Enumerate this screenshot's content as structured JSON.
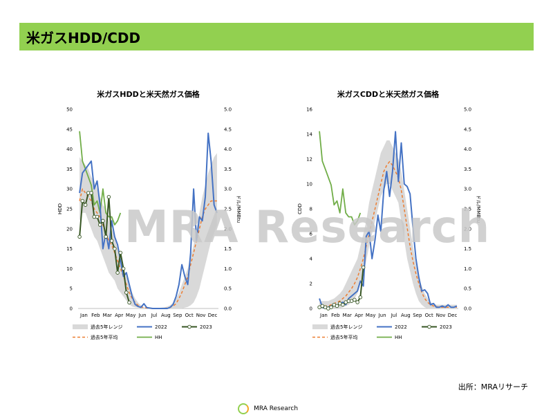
{
  "page": {
    "title": "米ガスHDD/CDD",
    "watermark": "MRA Research",
    "source": "出所：MRAリサーチ",
    "footer_text": "MRA Research",
    "colors": {
      "title_bar": "#92d050",
      "series_2022": "#4472c4",
      "series_2023": "#375623",
      "series_avg": "#ed7d31",
      "series_hh": "#70ad47",
      "range": "#d9d9d9"
    }
  },
  "chart_data": [
    {
      "type": "line",
      "title": "米ガスHDDと米天然ガス価格",
      "ylabel": "HDD",
      "y2label": "ドル/MMBtu",
      "ylim": [
        0,
        50
      ],
      "yticks": [
        "0",
        "5",
        "10",
        "15",
        "20",
        "25",
        "30",
        "35",
        "40",
        "45",
        "50"
      ],
      "y2lim": [
        0,
        5
      ],
      "y2ticks": [
        "0.0",
        "0.5",
        "1.0",
        "1.5",
        "2.0",
        "2.5",
        "3.0",
        "3.5",
        "4.0",
        "4.5",
        "5.0"
      ],
      "x_labels": [
        "Jan",
        "Feb",
        "Mar",
        "Apr",
        "May",
        "Jun",
        "Jul",
        "Aug",
        "Sep",
        "Oct",
        "Nov",
        "Dec"
      ],
      "legend": [
        "過去5年レンジ",
        "2022",
        "2023",
        "過去5年平均",
        "HH"
      ],
      "range_low": [
        22,
        24,
        24,
        22,
        20,
        18,
        17,
        15,
        13,
        11,
        9,
        8,
        7,
        5,
        4,
        3,
        2,
        1,
        0.5,
        0.3,
        0.2,
        0.1,
        0,
        0,
        0,
        0,
        0,
        0,
        0,
        0,
        0,
        0,
        0,
        0,
        0,
        0,
        0.2,
        0.4,
        0.8,
        1.5,
        3,
        5,
        8,
        11,
        14,
        17,
        19,
        21
      ],
      "range_high": [
        38,
        37,
        36,
        35,
        33,
        32,
        30,
        28,
        26,
        25,
        22,
        20,
        18,
        15,
        12,
        10,
        8,
        6,
        4,
        2.5,
        1.5,
        0.8,
        0.3,
        0.2,
        0.1,
        0.1,
        0.1,
        0.1,
        0.2,
        0.3,
        0.5,
        0.8,
        1.5,
        2.5,
        4,
        6,
        8,
        10,
        13,
        16,
        20,
        24,
        28,
        31,
        34,
        36,
        38,
        39
      ],
      "series": [
        {
          "name": "2022",
          "axis": "left",
          "values": [
            29,
            34,
            35,
            36,
            37,
            30,
            32,
            26,
            15,
            19,
            15,
            22,
            18,
            16,
            12,
            8,
            9,
            6,
            3,
            1,
            0.5,
            0.3,
            1.2,
            0.2,
            0.1,
            0,
            0,
            0,
            0,
            0,
            0,
            0.3,
            1,
            3,
            6,
            11,
            8,
            6,
            14,
            30,
            17,
            23,
            22,
            28,
            44,
            37,
            26,
            24
          ]
        },
        {
          "name": "2023",
          "axis": "left",
          "values": [
            18,
            27,
            26,
            29,
            29,
            23,
            23,
            21,
            22,
            18,
            28,
            17,
            15,
            9,
            14,
            10,
            4,
            1.5
          ]
        },
        {
          "name": "過去5年平均",
          "axis": "left",
          "values": [
            27,
            30,
            29,
            28,
            27,
            25,
            24,
            23,
            21,
            19,
            17,
            16,
            14,
            12,
            10,
            8,
            6,
            4,
            2.5,
            1.5,
            0.8,
            0.4,
            0.2,
            0.1,
            0.05,
            0,
            0,
            0,
            0,
            0.05,
            0.1,
            0.3,
            0.6,
            1.2,
            2.5,
            4,
            6,
            8,
            11,
            14,
            17,
            20,
            23,
            25,
            26,
            27,
            27,
            27
          ]
        },
        {
          "name": "HH",
          "axis": "right",
          "values": [
            4.45,
            3.7,
            3.5,
            3.3,
            3.1,
            2.6,
            2.7,
            2.4,
            3.0,
            2.4,
            2.3,
            2.3,
            2.1,
            2.2,
            2.4
          ]
        }
      ]
    },
    {
      "type": "line",
      "title": "米ガスCDDと米天然ガス価格",
      "ylabel": "CDD",
      "y2label": "ドル/MMBtu",
      "ylim": [
        0,
        16
      ],
      "yticks": [
        "0",
        "2",
        "4",
        "6",
        "8",
        "10",
        "12",
        "14",
        "16"
      ],
      "y2lim": [
        0,
        5
      ],
      "y2ticks": [
        "0.0",
        "0.5",
        "1.0",
        "1.5",
        "2.0",
        "2.5",
        "3.0",
        "3.5",
        "4.0",
        "4.5",
        "5.0"
      ],
      "x_labels": [
        "Jan",
        "Feb",
        "Mar",
        "Apr",
        "May",
        "Jun",
        "Jul",
        "Aug",
        "Sep",
        "Oct",
        "Nov",
        "Dec"
      ],
      "legend": [
        "過去5年レンジ",
        "2022",
        "2023",
        "過去5年平均",
        "HH"
      ],
      "range_low": [
        0,
        0,
        0,
        0,
        0,
        0,
        0,
        0,
        0.1,
        0.2,
        0.3,
        0.5,
        0.8,
        1.2,
        2,
        2.8,
        3.8,
        5,
        6,
        7,
        8,
        9,
        9.5,
        10,
        10,
        9.5,
        9,
        8.5,
        7,
        5.5,
        4,
        3,
        2,
        1.2,
        0.6,
        0.3,
        0.1,
        0,
        0,
        0,
        0,
        0,
        0,
        0,
        0,
        0,
        0,
        0
      ],
      "range_high": [
        0.5,
        0.6,
        0.6,
        0.6,
        0.7,
        0.8,
        1,
        1.2,
        1.5,
        2,
        2.5,
        3,
        3.5,
        4,
        5,
        6,
        7,
        8.5,
        9.5,
        10.5,
        11.5,
        12.5,
        13,
        13.5,
        13.5,
        13,
        12.5,
        12,
        11,
        9.5,
        8,
        6.5,
        5,
        3.5,
        2.5,
        1.8,
        1.2,
        0.8,
        0.5,
        0.4,
        0.3,
        0.3,
        0.3,
        0.3,
        0.3,
        0.3,
        0.3,
        0.3
      ],
      "series": [
        {
          "name": "2022",
          "axis": "left",
          "values": [
            0.8,
            0.1,
            0,
            0.1,
            0.2,
            0.3,
            0.2,
            0.4,
            0.5,
            0.3,
            0.8,
            1,
            1.2,
            1.4,
            2.2,
            1.8,
            5.8,
            6.2,
            4,
            5.5,
            7.5,
            6.2,
            9.5,
            11,
            9,
            11,
            14.2,
            10.2,
            13.3,
            10,
            9.8,
            9.2,
            6.5,
            4,
            2.5,
            1.4,
            1.5,
            1.2,
            0.3,
            0.4,
            0.1,
            0.1,
            0.2,
            0.1,
            0.3,
            0.1,
            0.1,
            0.2
          ]
        },
        {
          "name": "2023",
          "axis": "left",
          "values": [
            0.1,
            0.2,
            0.1,
            0,
            0.1,
            0.3,
            0.2,
            0.4,
            0.3,
            0.5,
            0.6,
            0.6,
            0.7,
            0.5,
            0.9,
            3.3
          ]
        },
        {
          "name": "過去5年平均",
          "axis": "left",
          "values": [
            0.2,
            0.2,
            0.2,
            0.2,
            0.3,
            0.4,
            0.5,
            0.6,
            0.8,
            1,
            1.3,
            1.6,
            2,
            2.5,
            3.2,
            4,
            5,
            6,
            7,
            8,
            9,
            10,
            11,
            11.5,
            11.8,
            11.5,
            11,
            10.5,
            9.5,
            8,
            6.5,
            5,
            3.8,
            2.8,
            2,
            1.3,
            0.8,
            0.5,
            0.3,
            0.2,
            0.15,
            0.1,
            0.1,
            0.1,
            0.1,
            0.1,
            0.1,
            0.1
          ]
        },
        {
          "name": "HH",
          "axis": "right",
          "values": [
            4.45,
            3.7,
            3.5,
            3.3,
            3.1,
            2.6,
            2.7,
            2.4,
            3.0,
            2.4,
            2.3,
            2.3,
            2.1,
            2.2,
            2.4
          ]
        }
      ]
    }
  ]
}
